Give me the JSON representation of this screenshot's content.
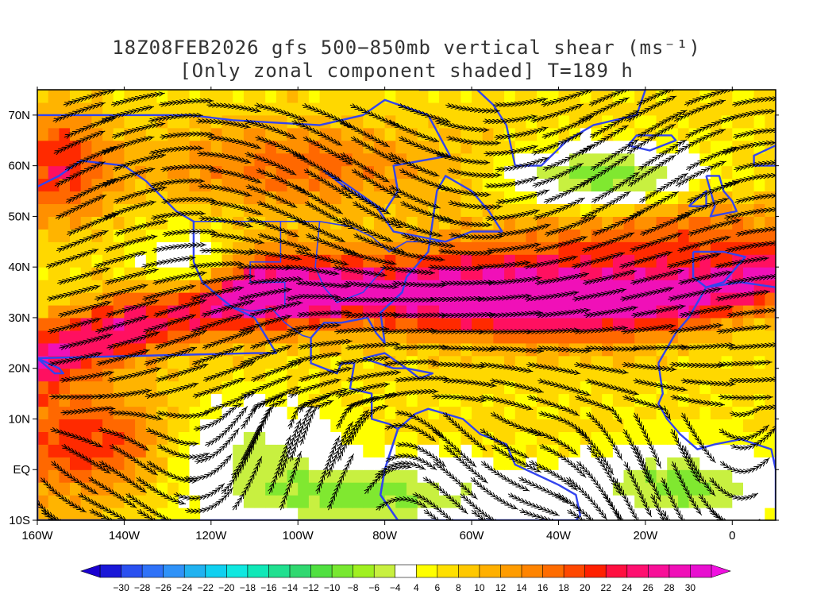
{
  "title": {
    "line1": "18Z08FEB2026 gfs 500−850mb vertical shear (ms⁻¹)",
    "line2": "[Only zonal component shaded] T=189 h"
  },
  "axes": {
    "lon_labels": [
      "160W",
      "140W",
      "120W",
      "100W",
      "80W",
      "60W",
      "40W",
      "20W",
      "0"
    ],
    "lat_labels": [
      "70N",
      "60N",
      "50N",
      "40N",
      "30N",
      "20N",
      "10N",
      "EQ",
      "10S"
    ],
    "lon_range": [
      -160,
      10
    ],
    "lat_range": [
      -10,
      75
    ],
    "lon_ticks": [
      -160,
      -140,
      -120,
      -100,
      -80,
      -60,
      -40,
      -20,
      0
    ],
    "lat_ticks": [
      70,
      60,
      50,
      40,
      30,
      20,
      10,
      0,
      -10
    ]
  },
  "colorbar": {
    "labels": [
      "−30",
      "−28",
      "−26",
      "−24",
      "−22",
      "−20",
      "−18",
      "−16",
      "−14",
      "−12",
      "−10",
      "−8",
      "−6",
      "−4",
      "4",
      "6",
      "8",
      "10",
      "12",
      "14",
      "16",
      "18",
      "20",
      "22",
      "24",
      "26",
      "28",
      "30"
    ],
    "colors": [
      "#1a18d8",
      "#2a50f0",
      "#2f72f8",
      "#2f92f8",
      "#20b2f0",
      "#10d0f0",
      "#10e8e0",
      "#10e8b8",
      "#20e090",
      "#30d870",
      "#50e040",
      "#78e830",
      "#a0f020",
      "#c8f040",
      "#ffffff",
      "#ffff00",
      "#ffe000",
      "#ffc800",
      "#ffb000",
      "#ff9c00",
      "#ff8400",
      "#ff6c00",
      "#ff4800",
      "#ff2000",
      "#ff1040",
      "#ff1070",
      "#f81098",
      "#f010b8",
      "#e810d0"
    ],
    "end_low": "#1a00d0",
    "end_high": "#f010e0"
  },
  "palette": {
    "coast": "#3344ee",
    "streamline": "#000000",
    "shear_colors": [
      "#ffffff",
      "#ffff00",
      "#ffd800",
      "#ffb400",
      "#ff9000",
      "#ff6800",
      "#ff2a00",
      "#ff1060",
      "#f010b8"
    ],
    "neg_colors": [
      "#c8f040",
      "#80e830",
      "#30d870",
      "#10e8c0"
    ]
  }
}
